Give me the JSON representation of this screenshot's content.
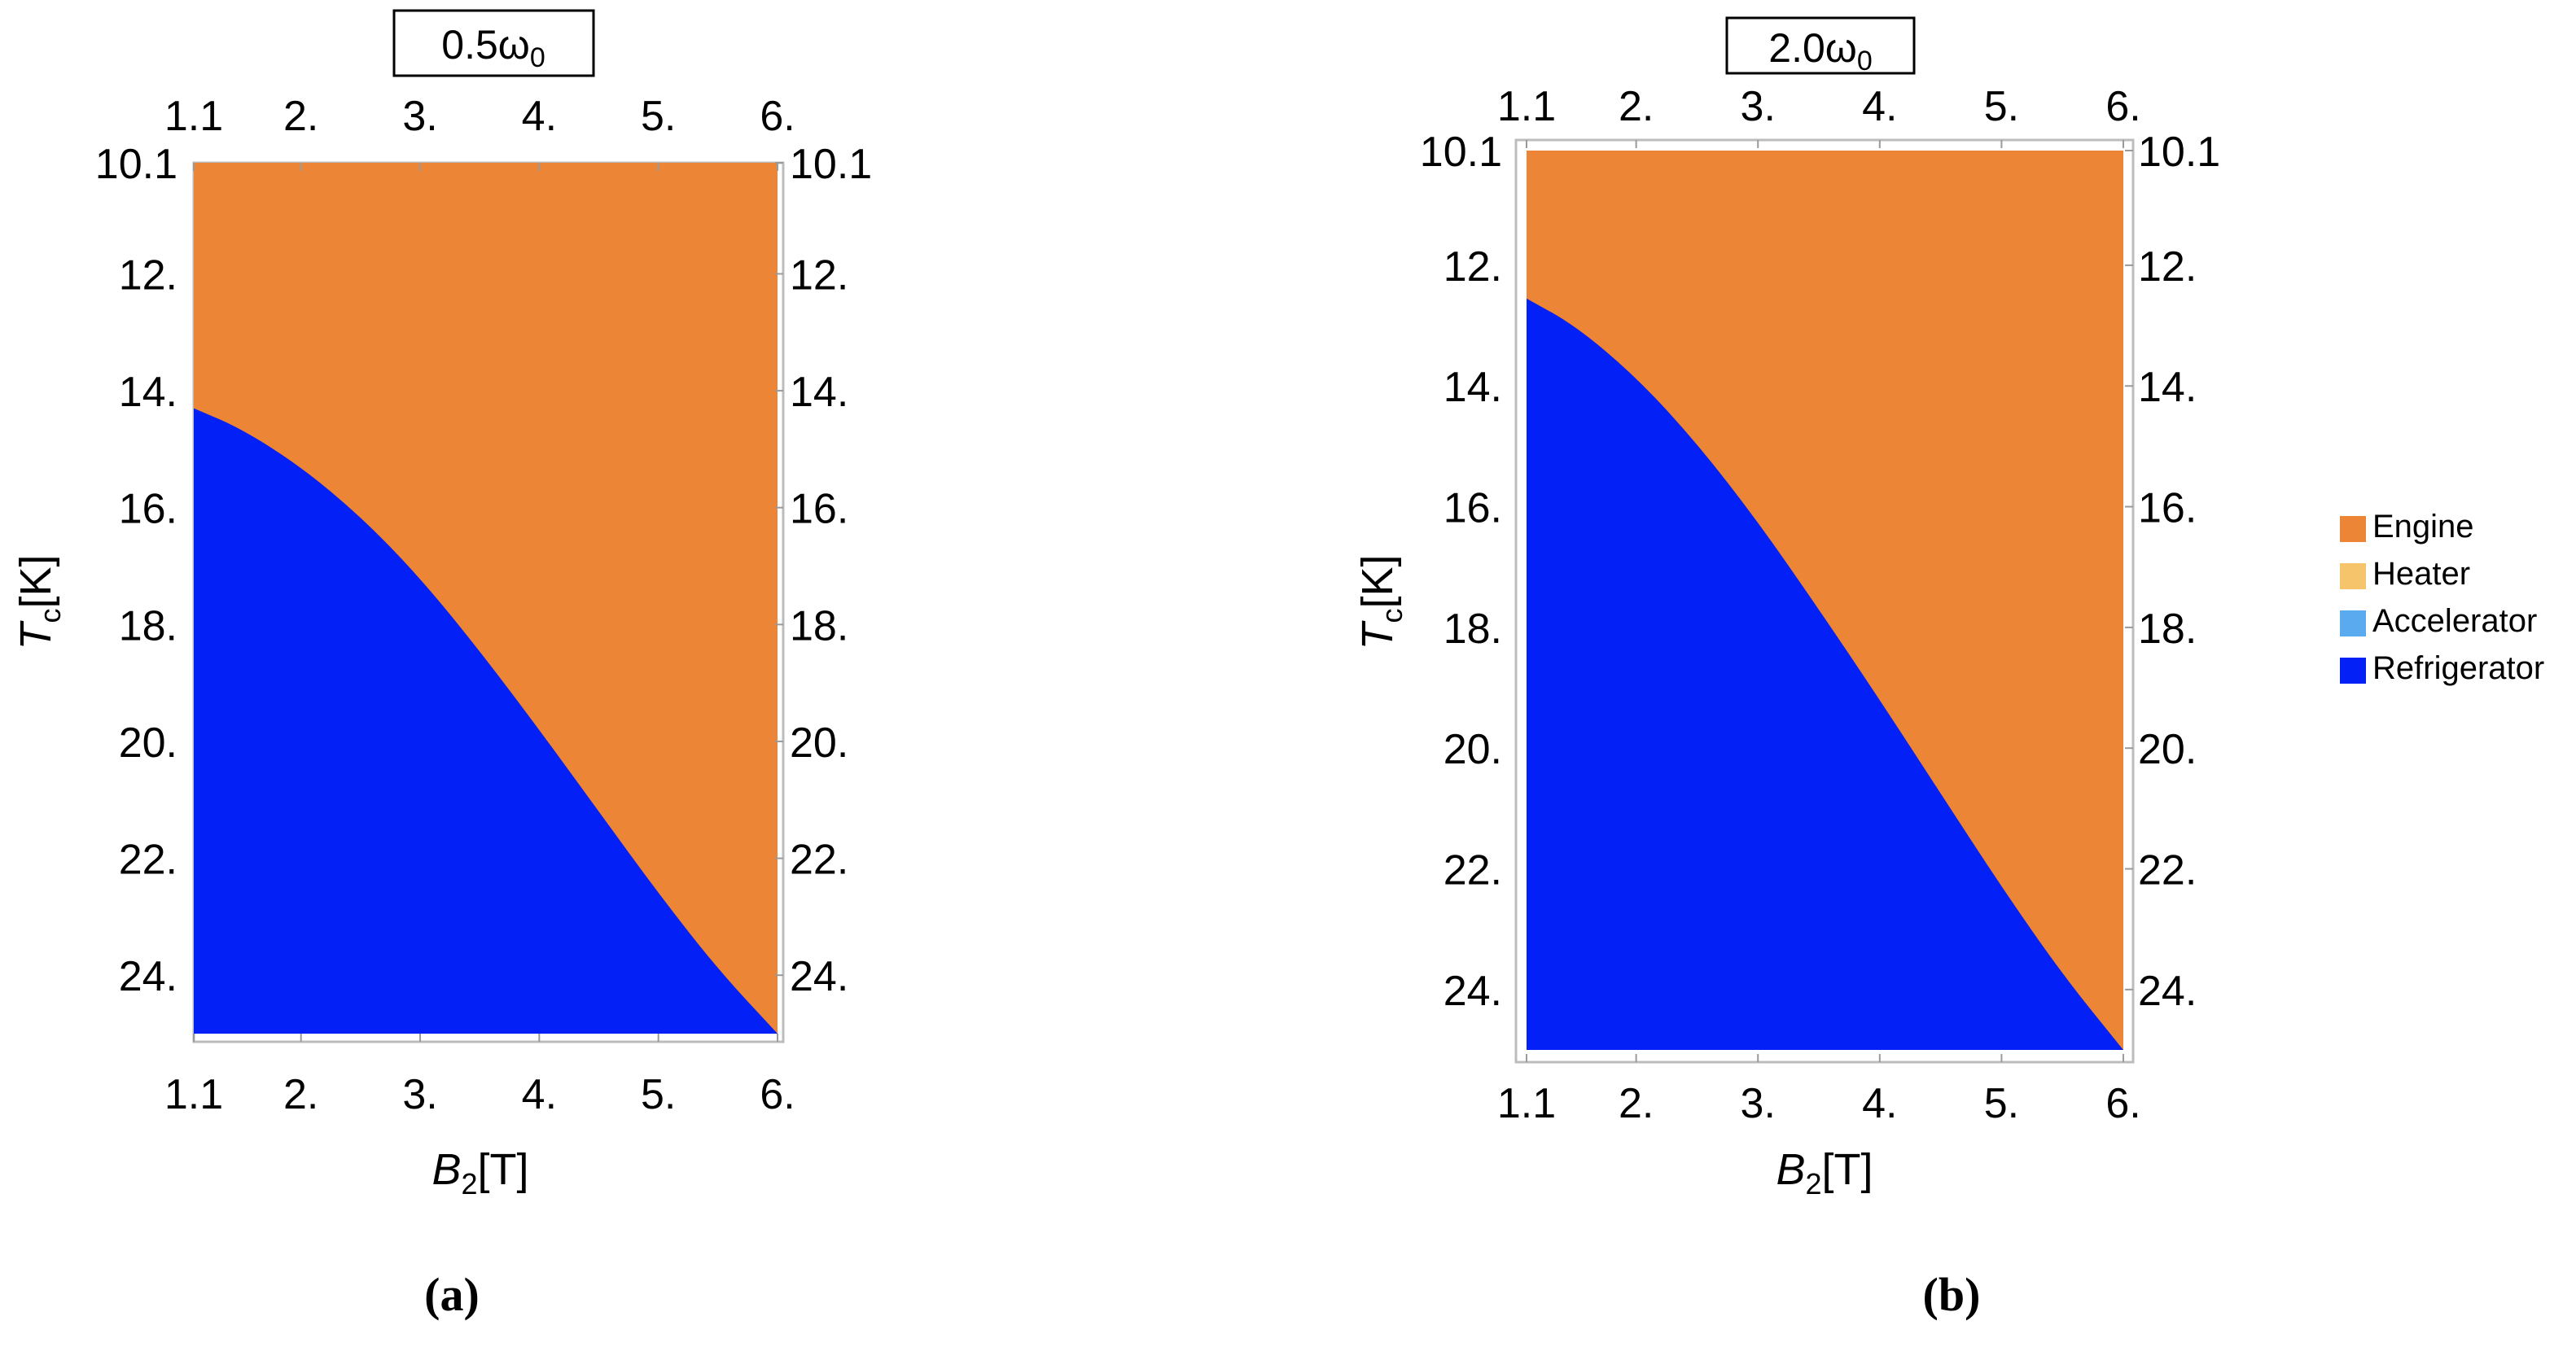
{
  "chart_data": [
    {
      "type": "region",
      "panel_label": "(a)",
      "title": "0.5ω",
      "title_sub": "0",
      "xlabel": "B",
      "xlabel_sub": "2",
      "xlabel_unit": "[T]",
      "ylabel": "T",
      "ylabel_sub": "c",
      "ylabel_unit": "[K]",
      "xlim": [
        1.1,
        6.0
      ],
      "ylim": [
        10.1,
        25.0
      ],
      "y_reversed": true,
      "x_ticks": [
        1.1,
        2,
        3,
        4,
        5,
        6
      ],
      "x_tick_labels": [
        "1.1",
        "2.",
        "3.",
        "4.",
        "5.",
        "6."
      ],
      "y_ticks": [
        10.1,
        12,
        14,
        16,
        18,
        20,
        22,
        24
      ],
      "y_tick_labels": [
        "10.1",
        "12.",
        "14.",
        "16.",
        "18.",
        "20.",
        "22.",
        "24."
      ],
      "boundary": {
        "x": [
          1.1,
          1.5,
          2.0,
          2.5,
          3.0,
          3.5,
          4.0,
          4.5,
          5.0,
          5.5,
          6.0
        ],
        "y": [
          14.3,
          14.65,
          15.3,
          16.15,
          17.2,
          18.45,
          19.8,
          21.2,
          22.6,
          23.9,
          25.0
        ]
      },
      "region_above_boundary": "Engine",
      "region_below_boundary": "Refrigerator"
    },
    {
      "type": "region",
      "panel_label": "(b)",
      "title": "2.0ω",
      "title_sub": "0",
      "xlabel": "B",
      "xlabel_sub": "2",
      "xlabel_unit": "[T]",
      "ylabel": "T",
      "ylabel_sub": "c",
      "ylabel_unit": "[K]",
      "xlim": [
        1.1,
        6.0
      ],
      "ylim": [
        10.1,
        25.0
      ],
      "y_reversed": true,
      "x_ticks": [
        1.1,
        2,
        3,
        4,
        5,
        6
      ],
      "x_tick_labels": [
        "1.1",
        "2.",
        "3.",
        "4.",
        "5.",
        "6."
      ],
      "y_ticks": [
        10.1,
        12,
        14,
        16,
        18,
        20,
        22,
        24
      ],
      "y_tick_labels": [
        "10.1",
        "12.",
        "14.",
        "16.",
        "18.",
        "20.",
        "22.",
        "24."
      ],
      "boundary": {
        "x": [
          1.1,
          1.5,
          2.0,
          2.5,
          3.0,
          3.5,
          4.0,
          4.5,
          5.0,
          5.5,
          6.0
        ],
        "y": [
          12.55,
          13.0,
          13.85,
          14.95,
          16.25,
          17.7,
          19.2,
          20.75,
          22.3,
          23.75,
          25.0
        ]
      },
      "region_above_boundary": "Engine",
      "region_below_boundary": "Refrigerator"
    }
  ],
  "legend": {
    "placement": "right",
    "items": [
      {
        "label": "Engine",
        "color": "#ec8636"
      },
      {
        "label": "Heater",
        "color": "#f6c46a"
      },
      {
        "label": "Accelerator",
        "color": "#5aaaf0"
      },
      {
        "label": "Refrigerator",
        "color": "#0320f6"
      }
    ]
  }
}
